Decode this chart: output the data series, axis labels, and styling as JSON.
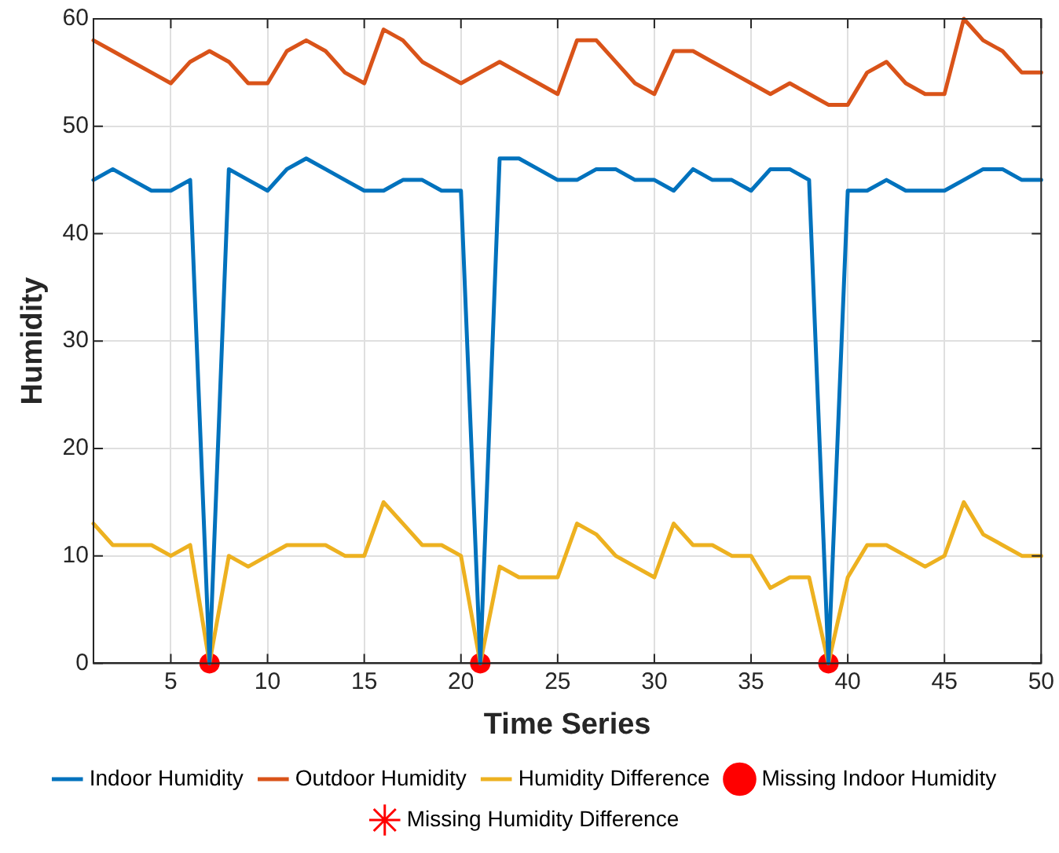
{
  "chart_data": {
    "type": "line",
    "xlabel": "Time Series",
    "ylabel": "Humidity",
    "x": [
      1,
      2,
      3,
      4,
      5,
      6,
      7,
      8,
      9,
      10,
      11,
      12,
      13,
      14,
      15,
      16,
      17,
      18,
      19,
      20,
      21,
      22,
      23,
      24,
      25,
      26,
      27,
      28,
      29,
      30,
      31,
      32,
      33,
      34,
      35,
      36,
      37,
      38,
      39,
      40,
      41,
      42,
      43,
      44,
      45,
      46,
      47,
      48,
      49,
      50
    ],
    "xlim": [
      1,
      50
    ],
    "xticks": [
      5,
      10,
      15,
      20,
      25,
      30,
      35,
      40,
      45,
      50
    ],
    "ylim": [
      0,
      60
    ],
    "yticks": [
      0,
      10,
      20,
      30,
      40,
      50,
      60
    ],
    "grid": true,
    "legend": "bottom",
    "line_style": "solid",
    "marker": "none",
    "series": [
      {
        "name": "Indoor Humidity",
        "color": "#0072bd",
        "values": [
          45,
          46,
          45,
          44,
          44,
          45,
          0,
          46,
          45,
          44,
          46,
          47,
          46,
          45,
          44,
          44,
          45,
          45,
          44,
          44,
          0,
          47,
          47,
          46,
          45,
          45,
          46,
          46,
          45,
          45,
          44,
          46,
          45,
          45,
          44,
          46,
          46,
          45,
          0,
          44,
          44,
          45,
          44,
          44,
          44,
          45,
          46,
          46,
          45,
          45
        ]
      },
      {
        "name": "Outdoor Humidity",
        "color": "#d95319",
        "values": [
          58,
          57,
          56,
          55,
          54,
          56,
          57,
          56,
          54,
          54,
          57,
          58,
          57,
          55,
          54,
          59,
          58,
          56,
          55,
          54,
          55,
          56,
          55,
          54,
          53,
          58,
          58,
          56,
          54,
          53,
          57,
          57,
          56,
          55,
          54,
          53,
          54,
          53,
          52,
          52,
          55,
          56,
          54,
          53,
          53,
          60,
          58,
          57,
          55,
          55
        ]
      },
      {
        "name": "Humidity Difference",
        "color": "#edb120",
        "values": [
          13,
          11,
          11,
          11,
          10,
          11,
          0,
          10,
          9,
          10,
          11,
          11,
          11,
          10,
          10,
          15,
          13,
          11,
          11,
          10,
          0,
          9,
          8,
          8,
          8,
          13,
          12,
          10,
          9,
          8,
          13,
          11,
          11,
          10,
          10,
          7,
          8,
          8,
          0,
          8,
          11,
          11,
          10,
          9,
          10,
          15,
          12,
          11,
          10,
          10
        ]
      },
      {
        "name": "Missing Indoor Humidity",
        "type": "scatter",
        "marker": "circle",
        "color": "#ff0000",
        "x": [
          7,
          21,
          39
        ],
        "values": [
          0,
          0,
          0
        ]
      },
      {
        "name": "Missing Humidity Difference",
        "type": "scatter",
        "marker": "star",
        "color": "#ff0000",
        "values": [
          null,
          null,
          null,
          null,
          null,
          null,
          null,
          null,
          null,
          null,
          null,
          null,
          null,
          null,
          null,
          null,
          null,
          null,
          null,
          null,
          null,
          null,
          null,
          null,
          null,
          null,
          null,
          null,
          null,
          null,
          null,
          null,
          null,
          null,
          null,
          null,
          null,
          null,
          null,
          null,
          null,
          null,
          null,
          null,
          null,
          null,
          null,
          null,
          null,
          null
        ]
      }
    ]
  }
}
